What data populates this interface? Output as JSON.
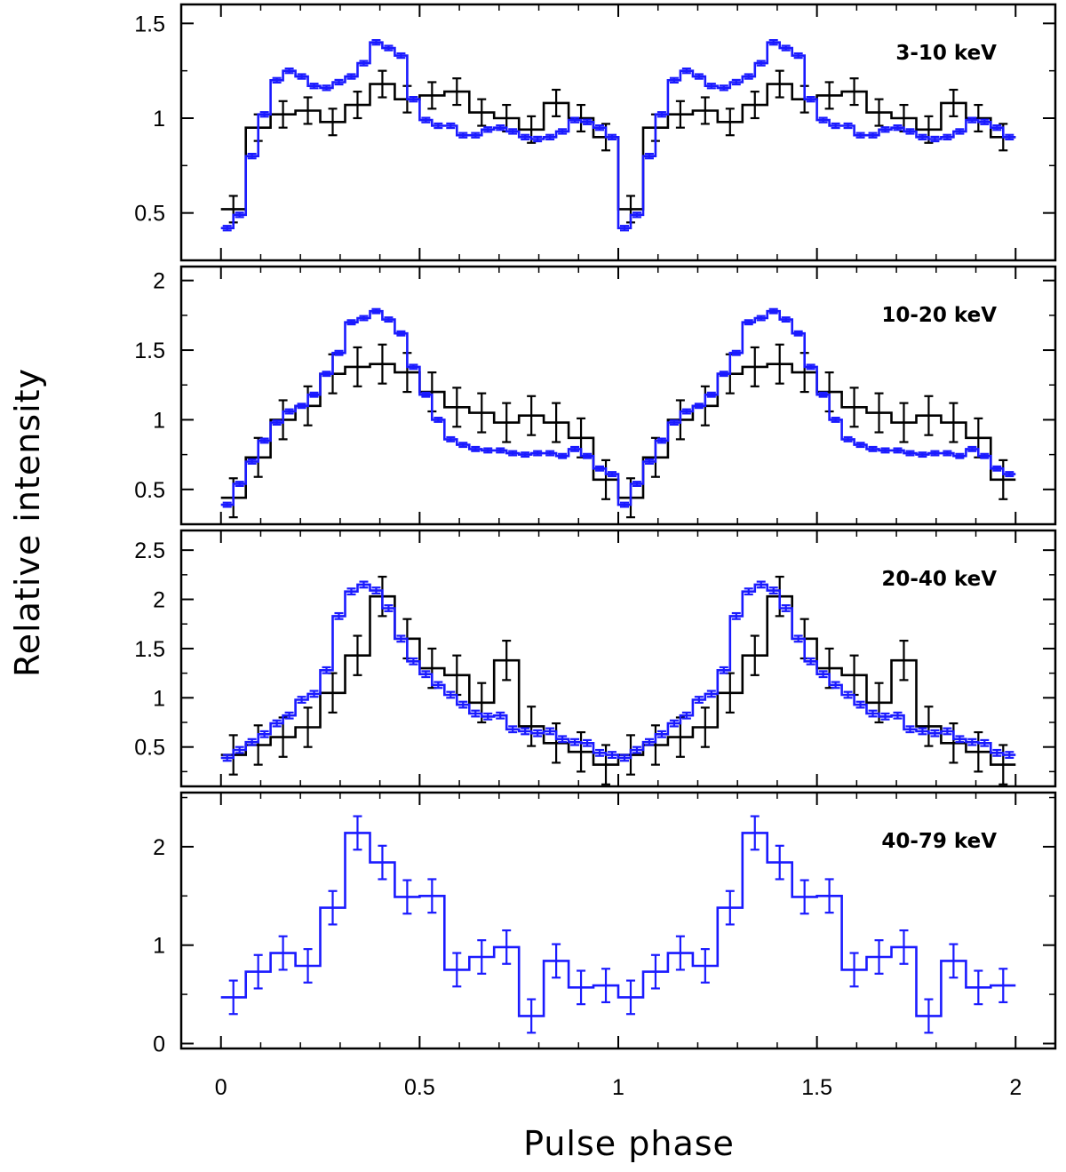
{
  "chart_data": {
    "type": "line",
    "title": "",
    "xlabel": "Pulse phase",
    "ylabel": "Relative intensity",
    "xlim": [
      -0.1,
      2.1
    ],
    "xticks": [
      0,
      0.5,
      1,
      1.5,
      2
    ],
    "xtick_labels": [
      "0",
      "0.5",
      "1",
      "1.5",
      "2"
    ],
    "colors": {
      "blue": "#1a1aff",
      "black": "#000000"
    },
    "panels": [
      {
        "label": "3-10 keV",
        "ylim": [
          0.25,
          1.6
        ],
        "yticks": [
          0.5,
          1,
          1.5
        ],
        "ytick_labels": [
          "0.5",
          "1",
          "1.5"
        ],
        "series": [
          {
            "name": "blue",
            "color": "#1a1aff",
            "bins": 32,
            "err": 0.012,
            "values": [
              0.42,
              0.49,
              0.8,
              1.02,
              1.2,
              1.25,
              1.22,
              1.17,
              1.16,
              1.19,
              1.22,
              1.29,
              1.4,
              1.37,
              1.33,
              1.1,
              0.99,
              0.96,
              0.96,
              0.91,
              0.91,
              0.94,
              0.95,
              0.93,
              0.9,
              0.89,
              0.9,
              0.93,
              0.99,
              0.98,
              0.95,
              0.9
            ]
          },
          {
            "name": "black",
            "color": "#000000",
            "bins": 16,
            "err": 0.07,
            "values": [
              0.52,
              0.95,
              1.02,
              1.04,
              0.98,
              1.07,
              1.18,
              1.1,
              1.12,
              1.14,
              1.03,
              1.0,
              0.94,
              1.08,
              1.0,
              0.9
            ]
          }
        ]
      },
      {
        "label": "10-20 keV",
        "ylim": [
          0.25,
          2.1
        ],
        "yticks": [
          0.5,
          1,
          1.5,
          2
        ],
        "ytick_labels": [
          "0.5",
          "1",
          "1.5",
          "2"
        ],
        "series": [
          {
            "name": "blue",
            "color": "#1a1aff",
            "bins": 32,
            "err": 0.015,
            "values": [
              0.39,
              0.54,
              0.7,
              0.85,
              0.98,
              1.06,
              1.1,
              1.18,
              1.33,
              1.48,
              1.7,
              1.73,
              1.78,
              1.72,
              1.62,
              1.38,
              1.18,
              1.0,
              0.86,
              0.82,
              0.79,
              0.78,
              0.78,
              0.76,
              0.75,
              0.76,
              0.76,
              0.74,
              0.79,
              0.74,
              0.65,
              0.61
            ]
          },
          {
            "name": "black",
            "color": "#000000",
            "bins": 16,
            "err": 0.14,
            "values": [
              0.44,
              0.73,
              1.0,
              1.1,
              1.33,
              1.38,
              1.4,
              1.34,
              1.2,
              1.09,
              1.05,
              0.98,
              1.03,
              0.98,
              0.87,
              0.57
            ]
          }
        ]
      },
      {
        "label": "20-40 keV",
        "ylim": [
          0.1,
          2.7
        ],
        "yticks": [
          0.5,
          1,
          1.5,
          2,
          2.5
        ],
        "ytick_labels": [
          "0.5",
          "1",
          "1.5",
          "2",
          "2.5"
        ],
        "series": [
          {
            "name": "blue",
            "color": "#1a1aff",
            "bins": 32,
            "err": 0.03,
            "values": [
              0.39,
              0.47,
              0.55,
              0.63,
              0.74,
              0.82,
              0.98,
              1.04,
              1.28,
              1.83,
              2.08,
              2.15,
              2.09,
              1.91,
              1.6,
              1.37,
              1.24,
              1.13,
              1.03,
              0.93,
              0.84,
              0.81,
              0.82,
              0.68,
              0.66,
              0.64,
              0.66,
              0.58,
              0.55,
              0.54,
              0.44,
              0.42
            ]
          },
          {
            "name": "black",
            "color": "#000000",
            "bins": 16,
            "err": 0.2,
            "values": [
              0.42,
              0.52,
              0.6,
              0.7,
              1.05,
              1.43,
              2.03,
              1.6,
              1.3,
              1.23,
              0.95,
              1.38,
              0.71,
              0.54,
              0.45,
              0.32
            ]
          }
        ]
      },
      {
        "label": "40-79 keV",
        "ylim": [
          -0.05,
          2.55
        ],
        "yticks": [
          0,
          1,
          2
        ],
        "ytick_labels": [
          "0",
          "1",
          "2"
        ],
        "series": [
          {
            "name": "blue",
            "color": "#1a1aff",
            "bins": 16,
            "err": 0.17,
            "values": [
              0.47,
              0.73,
              0.92,
              0.79,
              1.38,
              2.14,
              1.84,
              1.49,
              1.5,
              0.75,
              0.88,
              0.98,
              0.28,
              0.84,
              0.57,
              0.59
            ]
          }
        ]
      }
    ]
  }
}
